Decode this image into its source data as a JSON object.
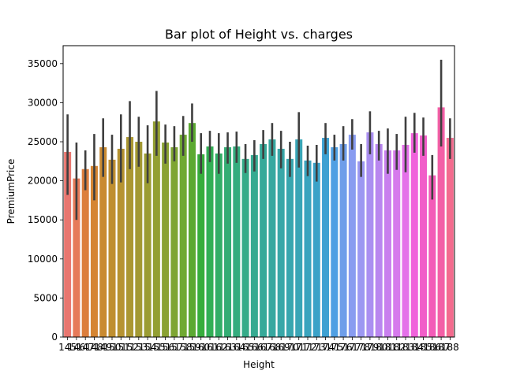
{
  "chart_data": {
    "type": "bar",
    "title": "Bar plot of Height vs. charges",
    "xlabel": "Height",
    "ylabel": "PremiumPrice",
    "ylim": [
      0,
      37300
    ],
    "yticks": [
      0,
      5000,
      10000,
      15000,
      20000,
      25000,
      30000,
      35000
    ],
    "grid": false,
    "legend": "none",
    "categories": [
      "145",
      "146",
      "147",
      "148",
      "149",
      "150",
      "151",
      "152",
      "153",
      "154",
      "155",
      "156",
      "157",
      "158",
      "159",
      "160",
      "161",
      "162",
      "163",
      "164",
      "165",
      "166",
      "167",
      "168",
      "169",
      "170",
      "171",
      "172",
      "173",
      "174",
      "175",
      "176",
      "177",
      "178",
      "179",
      "180",
      "181",
      "182",
      "183",
      "184",
      "185",
      "186",
      "187",
      "188"
    ],
    "values": [
      23700,
      20300,
      21500,
      21900,
      24300,
      22700,
      24100,
      25600,
      25000,
      23500,
      27600,
      24900,
      24300,
      25900,
      27400,
      23400,
      24400,
      23500,
      24300,
      24400,
      22800,
      23300,
      24700,
      25300,
      24100,
      22800,
      25300,
      22600,
      22300,
      25500,
      24300,
      24700,
      25900,
      22500,
      26200,
      24700,
      23900,
      23900,
      24600,
      26100,
      25800,
      20700,
      29400,
      25500
    ],
    "errors": [
      [
        18200,
        28500
      ],
      [
        15000,
        24900
      ],
      [
        18800,
        23900
      ],
      [
        17500,
        26000
      ],
      [
        20500,
        28000
      ],
      [
        19600,
        25900
      ],
      [
        19800,
        28500
      ],
      [
        21500,
        30200
      ],
      [
        21800,
        28200
      ],
      [
        19700,
        27100
      ],
      [
        23200,
        31500
      ],
      [
        22200,
        27200
      ],
      [
        22500,
        27000
      ],
      [
        23200,
        28300
      ],
      [
        25000,
        29900
      ],
      [
        20900,
        26100
      ],
      [
        22400,
        26400
      ],
      [
        20900,
        26100
      ],
      [
        22200,
        26200
      ],
      [
        22300,
        26300
      ],
      [
        21000,
        24700
      ],
      [
        21200,
        25200
      ],
      [
        22800,
        26500
      ],
      [
        23200,
        27400
      ],
      [
        21600,
        26400
      ],
      [
        20500,
        25000
      ],
      [
        21700,
        28800
      ],
      [
        20600,
        24500
      ],
      [
        19900,
        24600
      ],
      [
        23400,
        27400
      ],
      [
        22600,
        25900
      ],
      [
        22600,
        27000
      ],
      [
        24000,
        27900
      ],
      [
        20500,
        24700
      ],
      [
        23400,
        28900
      ],
      [
        22600,
        26400
      ],
      [
        20900,
        26700
      ],
      [
        21400,
        26000
      ],
      [
        21100,
        28200
      ],
      [
        23600,
        28700
      ],
      [
        23200,
        28100
      ],
      [
        17600,
        23300
      ],
      [
        24400,
        35500
      ],
      [
        22800,
        28000
      ]
    ],
    "bar_colors": [
      "#e8766f",
      "#e67a59",
      "#dc7e3c",
      "#d58532",
      "#c98a31",
      "#bf8f31",
      "#b69331",
      "#ab9731",
      "#a39932",
      "#9b9c32",
      "#939f33",
      "#8aa233",
      "#7ea533",
      "#70a932",
      "#5ba931",
      "#37ad3c",
      "#32af55",
      "#33ae67",
      "#34ad74",
      "#35ac7e",
      "#35ab88",
      "#36aa91",
      "#36a999",
      "#37a8a0",
      "#38a7a8",
      "#38a6af",
      "#39a5b6",
      "#3aa4be",
      "#3ba2c8",
      "#3ea1d2",
      "#4f9fe3",
      "#6e9ee9",
      "#889cf0",
      "#9c98f2",
      "#aa8ff1",
      "#b986ef",
      "#c97fee",
      "#d67aec",
      "#e471e9",
      "#f062db",
      "#f15ec9",
      "#f35bb8",
      "#f35fa6",
      "#f36b8e"
    ]
  }
}
